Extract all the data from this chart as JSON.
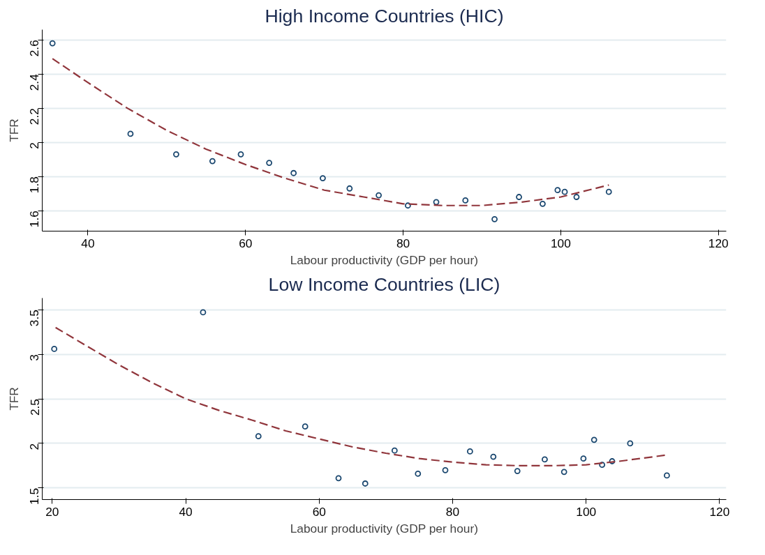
{
  "chart_data": [
    {
      "type": "scatter",
      "title": "High Income Countries (HIC)",
      "xlabel": "Labour productivity (GDP per hour)",
      "ylabel": "TFR",
      "xlim": [
        34.2,
        121
      ],
      "ylim": [
        1.48,
        2.66
      ],
      "xticks": [
        40,
        60,
        80,
        100,
        120
      ],
      "yticks": [
        1.6,
        1.8,
        2,
        2.2,
        2.4,
        2.6
      ],
      "grid": "y",
      "series": [
        {
          "color": "#1a476f",
          "marker": "circle",
          "x": [
            35.5,
            45.4,
            51.2,
            55.8,
            59.4,
            63.0,
            66.1,
            69.8,
            73.2,
            76.9,
            80.6,
            84.2,
            87.9,
            91.6,
            94.7,
            97.7,
            99.6,
            100.5,
            102.0,
            106.1
          ],
          "values": [
            2.58,
            2.05,
            1.93,
            1.89,
            1.93,
            1.88,
            1.82,
            1.79,
            1.73,
            1.69,
            1.63,
            1.65,
            1.66,
            1.55,
            1.68,
            1.64,
            1.72,
            1.71,
            1.68,
            1.71
          ]
        },
        {
          "type": "line",
          "color": "#90353b",
          "line_style": "dashed",
          "x": [
            35.5,
            40,
            45,
            50,
            55,
            60,
            65,
            70,
            75,
            80,
            85,
            90,
            95,
            100,
            106.1
          ],
          "values": [
            2.49,
            2.35,
            2.2,
            2.07,
            1.96,
            1.87,
            1.79,
            1.72,
            1.68,
            1.64,
            1.63,
            1.63,
            1.65,
            1.68,
            1.75
          ]
        }
      ]
    },
    {
      "type": "scatter",
      "title": "Low Income Countries (LIC)",
      "xlabel": "Labour productivity (GDP per hour)",
      "ylabel": "TFR",
      "xlim": [
        18.5,
        121
      ],
      "ylim": [
        1.37,
        3.63
      ],
      "xticks": [
        20,
        40,
        60,
        80,
        100,
        120
      ],
      "yticks": [
        1.5,
        2,
        2.5,
        3,
        3.5
      ],
      "grid": "y",
      "series": [
        {
          "color": "#1a476f",
          "marker": "circle",
          "x": [
            20.3,
            42.6,
            50.9,
            57.9,
            62.9,
            66.9,
            71.3,
            74.8,
            78.9,
            82.6,
            86.1,
            89.7,
            93.8,
            96.7,
            99.6,
            101.2,
            102.4,
            103.9,
            106.6,
            112.1
          ],
          "values": [
            3.06,
            3.47,
            2.08,
            2.19,
            1.61,
            1.55,
            1.92,
            1.66,
            1.7,
            1.91,
            1.85,
            1.69,
            1.82,
            1.68,
            1.83,
            2.04,
            1.76,
            1.8,
            2.0,
            1.64
          ]
        },
        {
          "type": "line",
          "color": "#90353b",
          "line_style": "dashed",
          "x": [
            20.5,
            25,
            30,
            35,
            40,
            45,
            50,
            55,
            60,
            65,
            70,
            75,
            80,
            85,
            90,
            95,
            100,
            105,
            112.1
          ],
          "values": [
            3.3,
            3.1,
            2.88,
            2.68,
            2.5,
            2.37,
            2.26,
            2.14,
            2.05,
            1.96,
            1.89,
            1.83,
            1.79,
            1.76,
            1.75,
            1.75,
            1.76,
            1.8,
            1.87
          ]
        }
      ]
    }
  ]
}
